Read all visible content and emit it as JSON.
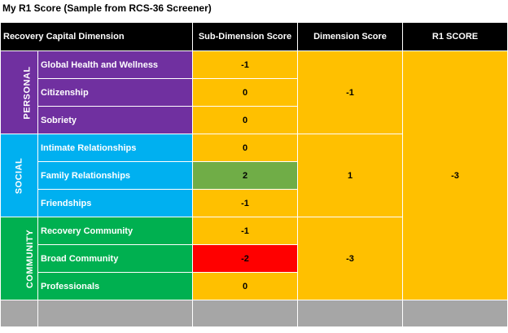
{
  "title": "My R1 Score (Sample from RCS-36 Screener)",
  "headers": {
    "dimension": "Recovery Capital Dimension",
    "sub_score": "Sub-Dimension Score",
    "dim_score": "Dimension Score",
    "r1_score": "R1 SCORE"
  },
  "groups": [
    {
      "label": "PERSONAL",
      "color": "#7030a0",
      "dimension_score": "-1",
      "items": [
        {
          "name": "Global Health and Wellness",
          "score": "-1"
        },
        {
          "name": "Citizenship",
          "score": "0"
        },
        {
          "name": "Sobriety",
          "score": "0"
        }
      ]
    },
    {
      "label": "SOCIAL",
      "color": "#00b0f0",
      "dimension_score": "1",
      "items": [
        {
          "name": "Intimate Relationships",
          "score": "0"
        },
        {
          "name": "Family Relationships",
          "score": "2"
        },
        {
          "name": "Friendships",
          "score": "-1"
        }
      ]
    },
    {
      "label": "COMMUNITY",
      "color": "#00b050",
      "dimension_score": "-3",
      "items": [
        {
          "name": "Recovery Community",
          "score": "-1"
        },
        {
          "name": "Broad Community",
          "score": "-2"
        },
        {
          "name": "Professionals",
          "score": "0"
        }
      ]
    }
  ],
  "r1_score": "-3",
  "colors": {
    "header_bg": "#000000",
    "score_bg": "#ffc000",
    "highlight_positive": "#70ad47",
    "highlight_negative": "#ff0000",
    "footer_bg": "#a6a6a6"
  }
}
